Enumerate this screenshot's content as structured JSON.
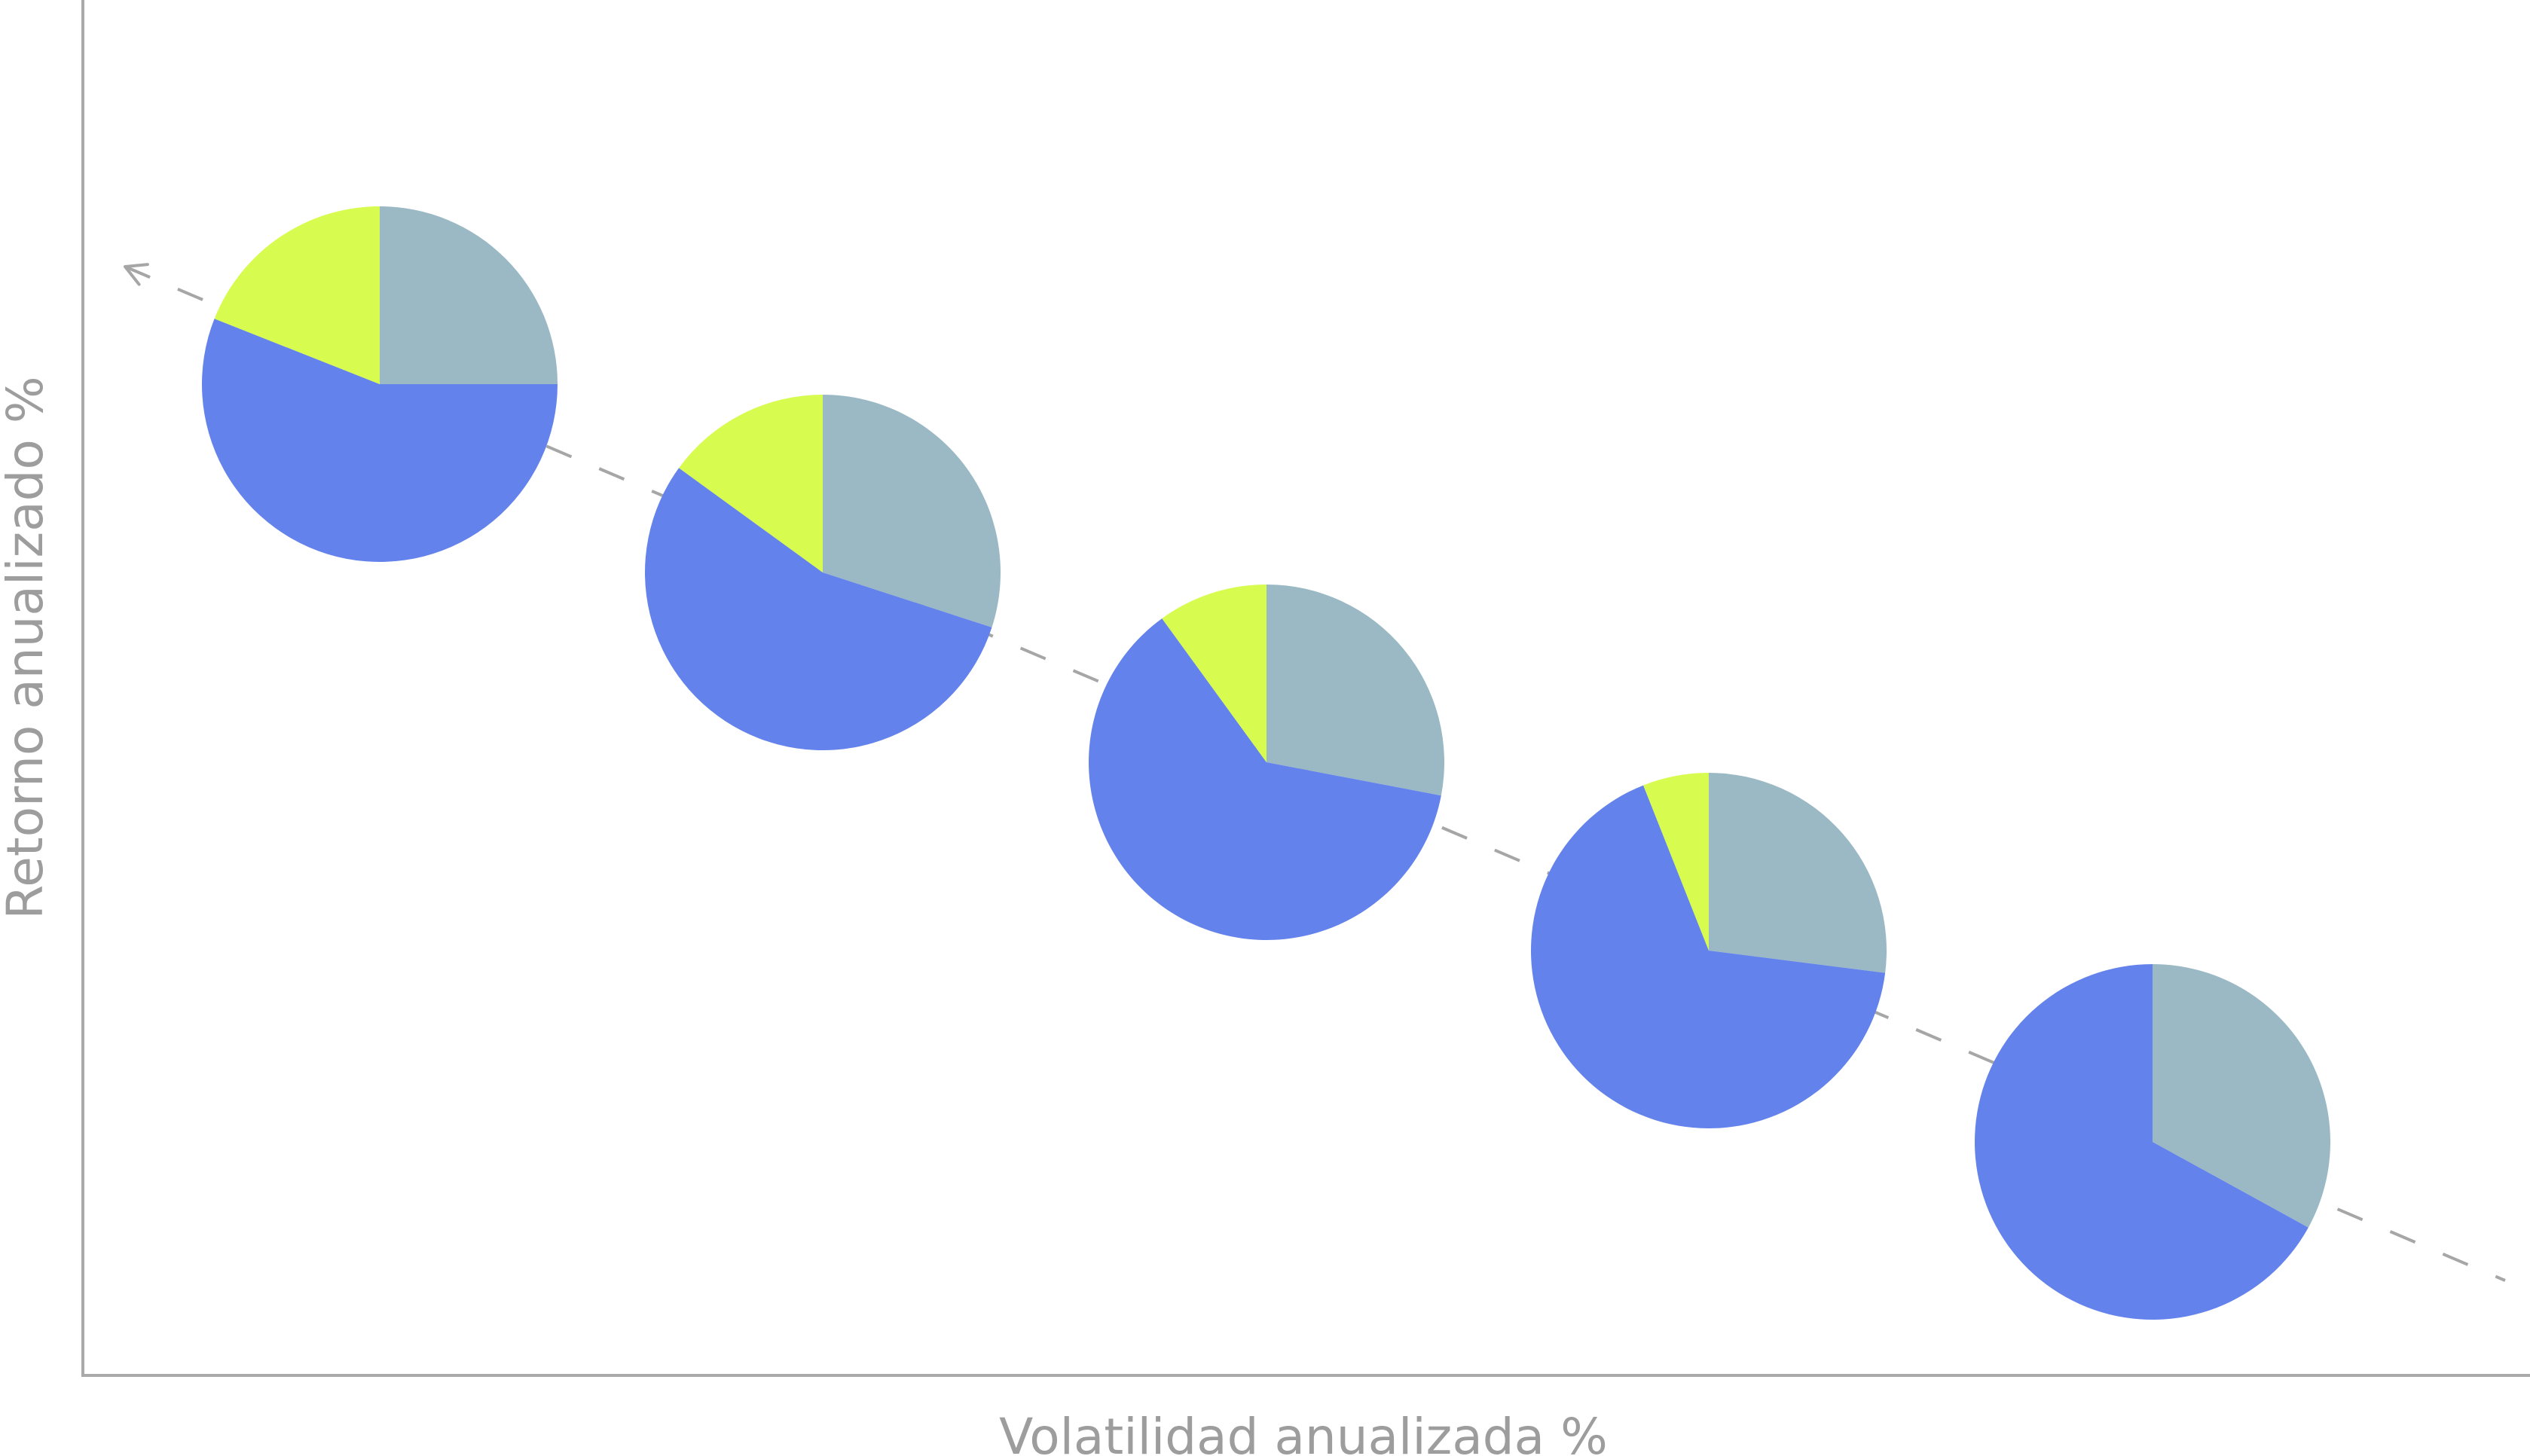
{
  "chart_data": {
    "type": "pie",
    "xlabel": "Volatilidad anualizada %",
    "ylabel": "Retorno anualizado %",
    "grid": false,
    "legend": "none",
    "colors": {
      "blue": "#6382eb",
      "gray_blue": "#9ab9c4",
      "lime": "#d7fb4f",
      "axis": "#aaaaaa",
      "trend_line": "#a6a6a6",
      "label": "#9d9d9d"
    },
    "trend_line": {
      "style": "dashed",
      "direction": "decreasing",
      "arrow": "start"
    },
    "pies": [
      {
        "slices": [
          {
            "color": "gray_blue",
            "value": 25
          },
          {
            "color": "blue",
            "value": 56
          },
          {
            "color": "lime",
            "value": 19
          }
        ]
      },
      {
        "slices": [
          {
            "color": "gray_blue",
            "value": 30
          },
          {
            "color": "blue",
            "value": 55
          },
          {
            "color": "lime",
            "value": 15
          }
        ]
      },
      {
        "slices": [
          {
            "color": "gray_blue",
            "value": 28
          },
          {
            "color": "blue",
            "value": 62
          },
          {
            "color": "lime",
            "value": 10
          }
        ]
      },
      {
        "slices": [
          {
            "color": "gray_blue",
            "value": 27
          },
          {
            "color": "blue",
            "value": 67
          },
          {
            "color": "lime",
            "value": 6
          }
        ]
      },
      {
        "slices": [
          {
            "color": "gray_blue",
            "value": 33
          },
          {
            "color": "blue",
            "value": 67
          }
        ]
      }
    ]
  }
}
